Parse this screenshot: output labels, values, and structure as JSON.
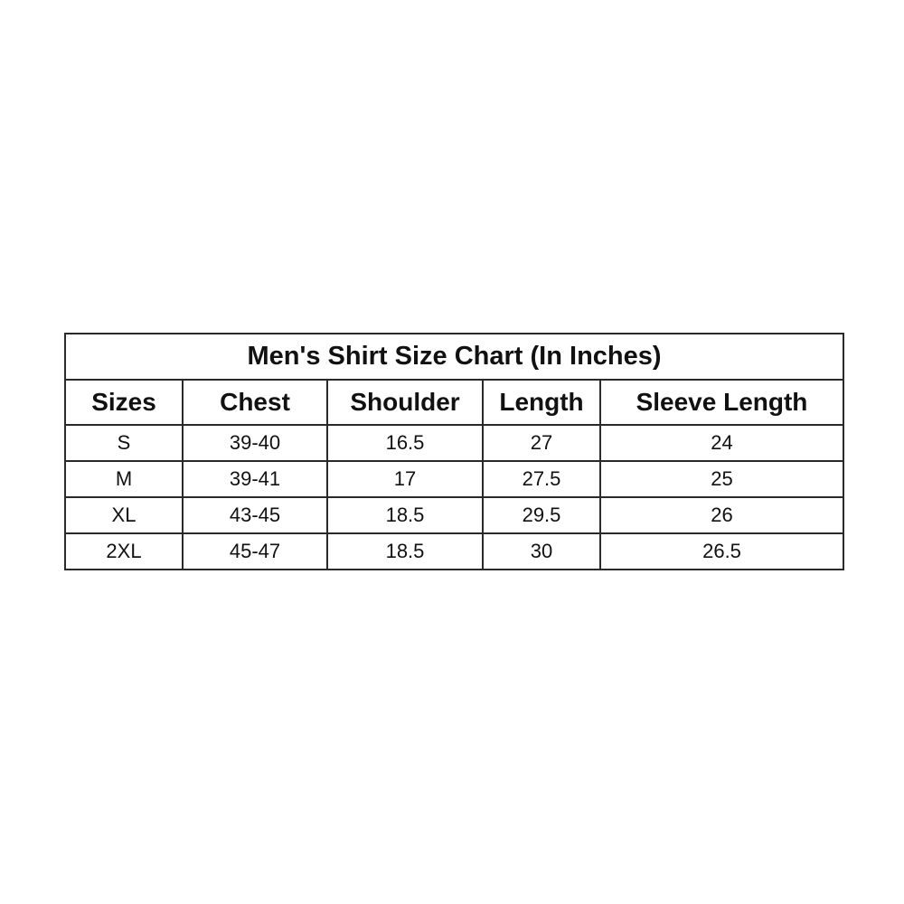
{
  "table": {
    "title": "Men's Shirt Size Chart (In Inches)",
    "headers": [
      "Sizes",
      "Chest",
      "Shoulder",
      "Length",
      "Sleeve Length"
    ],
    "rows": [
      [
        "S",
        "39-40",
        "16.5",
        "27",
        "24"
      ],
      [
        "M",
        "39-41",
        "17",
        "27.5",
        "25"
      ],
      [
        "XL",
        "43-45",
        "18.5",
        "29.5",
        "26"
      ],
      [
        "2XL",
        "45-47",
        "18.5",
        "30",
        "26.5"
      ]
    ]
  }
}
